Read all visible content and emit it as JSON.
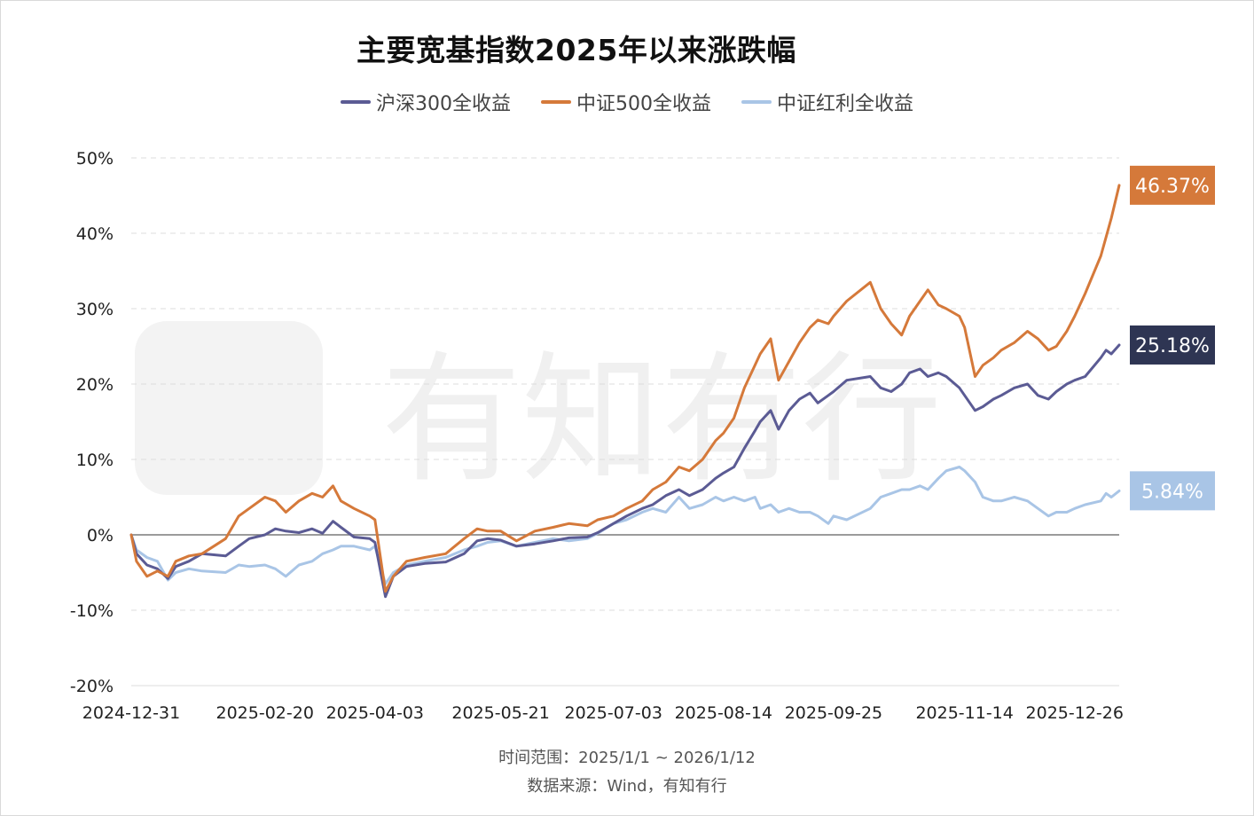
{
  "title": "主要宽基指数2025年以来涨跌幅",
  "footer": {
    "range": "时间范围：2025/1/1 ~ 2026/1/12",
    "source": "数据来源：Wind，有知有行"
  },
  "watermark": "有知有行",
  "chart_data": {
    "type": "line",
    "title": "主要宽基指数2025年以来涨跌幅",
    "xlabel": "",
    "ylabel": "",
    "x_range": [
      "2024-12-31",
      "2026-01-12"
    ],
    "x_tick_labels": [
      "2024-12-31",
      "2025-02-20",
      "2025-04-03",
      "2025-05-21",
      "2025-07-03",
      "2025-08-14",
      "2025-09-25",
      "2025-11-14",
      "2025-12-26"
    ],
    "y_range": [
      -20,
      50
    ],
    "y_ticks": [
      50,
      40,
      30,
      20,
      10,
      0,
      -10,
      -20
    ],
    "y_tick_labels": [
      "50%",
      "40%",
      "30%",
      "20%",
      "10%",
      "0%",
      "-10%",
      "-20%"
    ],
    "grid": "horizontal dashed",
    "legend_position": "top-center",
    "series": [
      {
        "name": "沪深300全收益",
        "color": "#5b5b94",
        "end_label": "25.18%",
        "end_label_bg": "#2e3553",
        "points": [
          [
            "2024-12-31",
            0
          ],
          [
            "2025-01-02",
            -2.5
          ],
          [
            "2025-01-06",
            -4.0
          ],
          [
            "2025-01-10",
            -4.5
          ],
          [
            "2025-01-14",
            -5.8
          ],
          [
            "2025-01-17",
            -4.2
          ],
          [
            "2025-01-22",
            -3.5
          ],
          [
            "2025-01-27",
            -2.5
          ],
          [
            "2025-02-05",
            -2.8
          ],
          [
            "2025-02-10",
            -1.5
          ],
          [
            "2025-02-14",
            -0.5
          ],
          [
            "2025-02-20",
            0.0
          ],
          [
            "2025-02-24",
            0.8
          ],
          [
            "2025-02-28",
            0.5
          ],
          [
            "2025-03-05",
            0.3
          ],
          [
            "2025-03-10",
            0.8
          ],
          [
            "2025-03-14",
            0.2
          ],
          [
            "2025-03-18",
            1.8
          ],
          [
            "2025-03-21",
            1.0
          ],
          [
            "2025-03-26",
            -0.3
          ],
          [
            "2025-04-01",
            -0.5
          ],
          [
            "2025-04-03",
            -1.0
          ],
          [
            "2025-04-07",
            -8.2
          ],
          [
            "2025-04-10",
            -5.5
          ],
          [
            "2025-04-15",
            -4.2
          ],
          [
            "2025-04-22",
            -3.8
          ],
          [
            "2025-04-30",
            -3.6
          ],
          [
            "2025-05-07",
            -2.5
          ],
          [
            "2025-05-12",
            -0.8
          ],
          [
            "2025-05-16",
            -0.5
          ],
          [
            "2025-05-21",
            -0.7
          ],
          [
            "2025-05-27",
            -1.5
          ],
          [
            "2025-06-03",
            -1.2
          ],
          [
            "2025-06-10",
            -0.8
          ],
          [
            "2025-06-16",
            -0.4
          ],
          [
            "2025-06-23",
            -0.3
          ],
          [
            "2025-06-27",
            0.3
          ],
          [
            "2025-07-03",
            1.5
          ],
          [
            "2025-07-08",
            2.5
          ],
          [
            "2025-07-14",
            3.5
          ],
          [
            "2025-07-18",
            4.0
          ],
          [
            "2025-07-23",
            5.2
          ],
          [
            "2025-07-28",
            6.0
          ],
          [
            "2025-08-01",
            5.2
          ],
          [
            "2025-08-06",
            6.0
          ],
          [
            "2025-08-11",
            7.5
          ],
          [
            "2025-08-14",
            8.2
          ],
          [
            "2025-08-18",
            9.0
          ],
          [
            "2025-08-22",
            11.5
          ],
          [
            "2025-08-26",
            13.8
          ],
          [
            "2025-08-28",
            15.0
          ],
          [
            "2025-09-01",
            16.5
          ],
          [
            "2025-09-04",
            14.0
          ],
          [
            "2025-09-08",
            16.5
          ],
          [
            "2025-09-12",
            18.0
          ],
          [
            "2025-09-16",
            18.8
          ],
          [
            "2025-09-19",
            17.5
          ],
          [
            "2025-09-23",
            18.5
          ],
          [
            "2025-09-25",
            19.0
          ],
          [
            "2025-09-30",
            20.5
          ],
          [
            "2025-10-09",
            21.0
          ],
          [
            "2025-10-13",
            19.5
          ],
          [
            "2025-10-17",
            19.0
          ],
          [
            "2025-10-21",
            20.0
          ],
          [
            "2025-10-24",
            21.5
          ],
          [
            "2025-10-28",
            22.0
          ],
          [
            "2025-10-31",
            21.0
          ],
          [
            "2025-11-04",
            21.5
          ],
          [
            "2025-11-07",
            21.0
          ],
          [
            "2025-11-12",
            19.5
          ],
          [
            "2025-11-14",
            18.5
          ],
          [
            "2025-11-18",
            16.5
          ],
          [
            "2025-11-21",
            17.0
          ],
          [
            "2025-11-25",
            18.0
          ],
          [
            "2025-11-28",
            18.5
          ],
          [
            "2025-12-03",
            19.5
          ],
          [
            "2025-12-08",
            20.0
          ],
          [
            "2025-12-12",
            18.5
          ],
          [
            "2025-12-16",
            18.0
          ],
          [
            "2025-12-19",
            19.0
          ],
          [
            "2025-12-23",
            20.0
          ],
          [
            "2025-12-26",
            20.5
          ],
          [
            "2025-12-30",
            21.0
          ],
          [
            "2026-01-05",
            23.5
          ],
          [
            "2026-01-07",
            24.5
          ],
          [
            "2026-01-09",
            24.0
          ],
          [
            "2026-01-12",
            25.18
          ]
        ]
      },
      {
        "name": "中证500全收益",
        "color": "#d5793a",
        "end_label": "46.37%",
        "end_label_bg": "#d5793a",
        "points": [
          [
            "2024-12-31",
            0
          ],
          [
            "2025-01-02",
            -3.5
          ],
          [
            "2025-01-06",
            -5.5
          ],
          [
            "2025-01-10",
            -4.8
          ],
          [
            "2025-01-14",
            -5.5
          ],
          [
            "2025-01-17",
            -3.5
          ],
          [
            "2025-01-22",
            -2.8
          ],
          [
            "2025-01-27",
            -2.5
          ],
          [
            "2025-02-05",
            -0.5
          ],
          [
            "2025-02-10",
            2.5
          ],
          [
            "2025-02-14",
            3.5
          ],
          [
            "2025-02-20",
            5.0
          ],
          [
            "2025-02-24",
            4.5
          ],
          [
            "2025-02-28",
            3.0
          ],
          [
            "2025-03-05",
            4.5
          ],
          [
            "2025-03-10",
            5.5
          ],
          [
            "2025-03-14",
            5.0
          ],
          [
            "2025-03-18",
            6.5
          ],
          [
            "2025-03-21",
            4.5
          ],
          [
            "2025-03-26",
            3.5
          ],
          [
            "2025-04-01",
            2.5
          ],
          [
            "2025-04-03",
            2.0
          ],
          [
            "2025-04-07",
            -7.5
          ],
          [
            "2025-04-10",
            -5.5
          ],
          [
            "2025-04-15",
            -3.5
          ],
          [
            "2025-04-22",
            -3.0
          ],
          [
            "2025-04-30",
            -2.5
          ],
          [
            "2025-05-07",
            -0.5
          ],
          [
            "2025-05-12",
            0.8
          ],
          [
            "2025-05-16",
            0.5
          ],
          [
            "2025-05-21",
            0.5
          ],
          [
            "2025-05-27",
            -0.8
          ],
          [
            "2025-06-03",
            0.5
          ],
          [
            "2025-06-10",
            1.0
          ],
          [
            "2025-06-16",
            1.5
          ],
          [
            "2025-06-23",
            1.2
          ],
          [
            "2025-06-27",
            2.0
          ],
          [
            "2025-07-03",
            2.5
          ],
          [
            "2025-07-08",
            3.5
          ],
          [
            "2025-07-14",
            4.5
          ],
          [
            "2025-07-18",
            6.0
          ],
          [
            "2025-07-23",
            7.0
          ],
          [
            "2025-07-28",
            9.0
          ],
          [
            "2025-08-01",
            8.5
          ],
          [
            "2025-08-06",
            10.0
          ],
          [
            "2025-08-11",
            12.5
          ],
          [
            "2025-08-14",
            13.5
          ],
          [
            "2025-08-18",
            15.5
          ],
          [
            "2025-08-22",
            19.5
          ],
          [
            "2025-08-26",
            22.5
          ],
          [
            "2025-08-28",
            24.0
          ],
          [
            "2025-09-01",
            26.0
          ],
          [
            "2025-09-04",
            20.5
          ],
          [
            "2025-09-08",
            23.0
          ],
          [
            "2025-09-12",
            25.5
          ],
          [
            "2025-09-16",
            27.5
          ],
          [
            "2025-09-19",
            28.5
          ],
          [
            "2025-09-23",
            28.0
          ],
          [
            "2025-09-25",
            29.0
          ],
          [
            "2025-09-30",
            31.0
          ],
          [
            "2025-10-09",
            33.5
          ],
          [
            "2025-10-13",
            30.0
          ],
          [
            "2025-10-17",
            28.0
          ],
          [
            "2025-10-21",
            26.5
          ],
          [
            "2025-10-24",
            29.0
          ],
          [
            "2025-10-28",
            31.0
          ],
          [
            "2025-10-31",
            32.5
          ],
          [
            "2025-11-04",
            30.5
          ],
          [
            "2025-11-07",
            30.0
          ],
          [
            "2025-11-12",
            29.0
          ],
          [
            "2025-11-14",
            27.5
          ],
          [
            "2025-11-18",
            21.0
          ],
          [
            "2025-11-21",
            22.5
          ],
          [
            "2025-11-25",
            23.5
          ],
          [
            "2025-11-28",
            24.5
          ],
          [
            "2025-12-03",
            25.5
          ],
          [
            "2025-12-08",
            27.0
          ],
          [
            "2025-12-12",
            26.0
          ],
          [
            "2025-12-16",
            24.5
          ],
          [
            "2025-12-19",
            25.0
          ],
          [
            "2025-12-23",
            27.0
          ],
          [
            "2025-12-26",
            29.0
          ],
          [
            "2025-12-30",
            32.0
          ],
          [
            "2026-01-05",
            37.0
          ],
          [
            "2026-01-07",
            39.5
          ],
          [
            "2026-01-09",
            42.0
          ],
          [
            "2026-01-12",
            46.37
          ]
        ]
      },
      {
        "name": "中证红利全收益",
        "color": "#a9c5e6",
        "end_label": "5.84%",
        "end_label_bg": "#a9c5e6",
        "points": [
          [
            "2024-12-31",
            0
          ],
          [
            "2025-01-02",
            -2.0
          ],
          [
            "2025-01-06",
            -3.0
          ],
          [
            "2025-01-10",
            -3.5
          ],
          [
            "2025-01-14",
            -6.0
          ],
          [
            "2025-01-17",
            -5.0
          ],
          [
            "2025-01-22",
            -4.5
          ],
          [
            "2025-01-27",
            -4.8
          ],
          [
            "2025-02-05",
            -5.0
          ],
          [
            "2025-02-10",
            -4.0
          ],
          [
            "2025-02-14",
            -4.2
          ],
          [
            "2025-02-20",
            -4.0
          ],
          [
            "2025-02-24",
            -4.5
          ],
          [
            "2025-02-28",
            -5.5
          ],
          [
            "2025-03-05",
            -4.0
          ],
          [
            "2025-03-10",
            -3.5
          ],
          [
            "2025-03-14",
            -2.5
          ],
          [
            "2025-03-18",
            -2.0
          ],
          [
            "2025-03-21",
            -1.5
          ],
          [
            "2025-03-26",
            -1.5
          ],
          [
            "2025-04-01",
            -2.0
          ],
          [
            "2025-04-03",
            -1.5
          ],
          [
            "2025-04-07",
            -6.5
          ],
          [
            "2025-04-10",
            -5.0
          ],
          [
            "2025-04-15",
            -4.0
          ],
          [
            "2025-04-22",
            -3.5
          ],
          [
            "2025-04-30",
            -3.0
          ],
          [
            "2025-05-07",
            -2.0
          ],
          [
            "2025-05-12",
            -1.5
          ],
          [
            "2025-05-16",
            -1.0
          ],
          [
            "2025-05-21",
            -0.8
          ],
          [
            "2025-05-27",
            -1.5
          ],
          [
            "2025-06-03",
            -1.0
          ],
          [
            "2025-06-10",
            -0.5
          ],
          [
            "2025-06-16",
            -0.8
          ],
          [
            "2025-06-23",
            -0.5
          ],
          [
            "2025-06-27",
            0.2
          ],
          [
            "2025-07-03",
            1.5
          ],
          [
            "2025-07-08",
            2.0
          ],
          [
            "2025-07-14",
            3.0
          ],
          [
            "2025-07-18",
            3.5
          ],
          [
            "2025-07-23",
            3.0
          ],
          [
            "2025-07-28",
            5.0
          ],
          [
            "2025-08-01",
            3.5
          ],
          [
            "2025-08-06",
            4.0
          ],
          [
            "2025-08-11",
            5.0
          ],
          [
            "2025-08-14",
            4.5
          ],
          [
            "2025-08-18",
            5.0
          ],
          [
            "2025-08-22",
            4.5
          ],
          [
            "2025-08-26",
            5.0
          ],
          [
            "2025-08-28",
            3.5
          ],
          [
            "2025-09-01",
            4.0
          ],
          [
            "2025-09-04",
            3.0
          ],
          [
            "2025-09-08",
            3.5
          ],
          [
            "2025-09-12",
            3.0
          ],
          [
            "2025-09-16",
            3.0
          ],
          [
            "2025-09-19",
            2.5
          ],
          [
            "2025-09-23",
            1.5
          ],
          [
            "2025-09-25",
            2.5
          ],
          [
            "2025-09-30",
            2.0
          ],
          [
            "2025-10-09",
            3.5
          ],
          [
            "2025-10-13",
            5.0
          ],
          [
            "2025-10-17",
            5.5
          ],
          [
            "2025-10-21",
            6.0
          ],
          [
            "2025-10-24",
            6.0
          ],
          [
            "2025-10-28",
            6.5
          ],
          [
            "2025-10-31",
            6.0
          ],
          [
            "2025-11-04",
            7.5
          ],
          [
            "2025-11-07",
            8.5
          ],
          [
            "2025-11-12",
            9.0
          ],
          [
            "2025-11-14",
            8.5
          ],
          [
            "2025-11-18",
            7.0
          ],
          [
            "2025-11-21",
            5.0
          ],
          [
            "2025-11-25",
            4.5
          ],
          [
            "2025-11-28",
            4.5
          ],
          [
            "2025-12-03",
            5.0
          ],
          [
            "2025-12-08",
            4.5
          ],
          [
            "2025-12-12",
            3.5
          ],
          [
            "2025-12-16",
            2.5
          ],
          [
            "2025-12-19",
            3.0
          ],
          [
            "2025-12-23",
            3.0
          ],
          [
            "2025-12-26",
            3.5
          ],
          [
            "2025-12-30",
            4.0
          ],
          [
            "2026-01-05",
            4.5
          ],
          [
            "2026-01-07",
            5.5
          ],
          [
            "2026-01-09",
            5.0
          ],
          [
            "2026-01-12",
            5.84
          ]
        ]
      }
    ]
  }
}
